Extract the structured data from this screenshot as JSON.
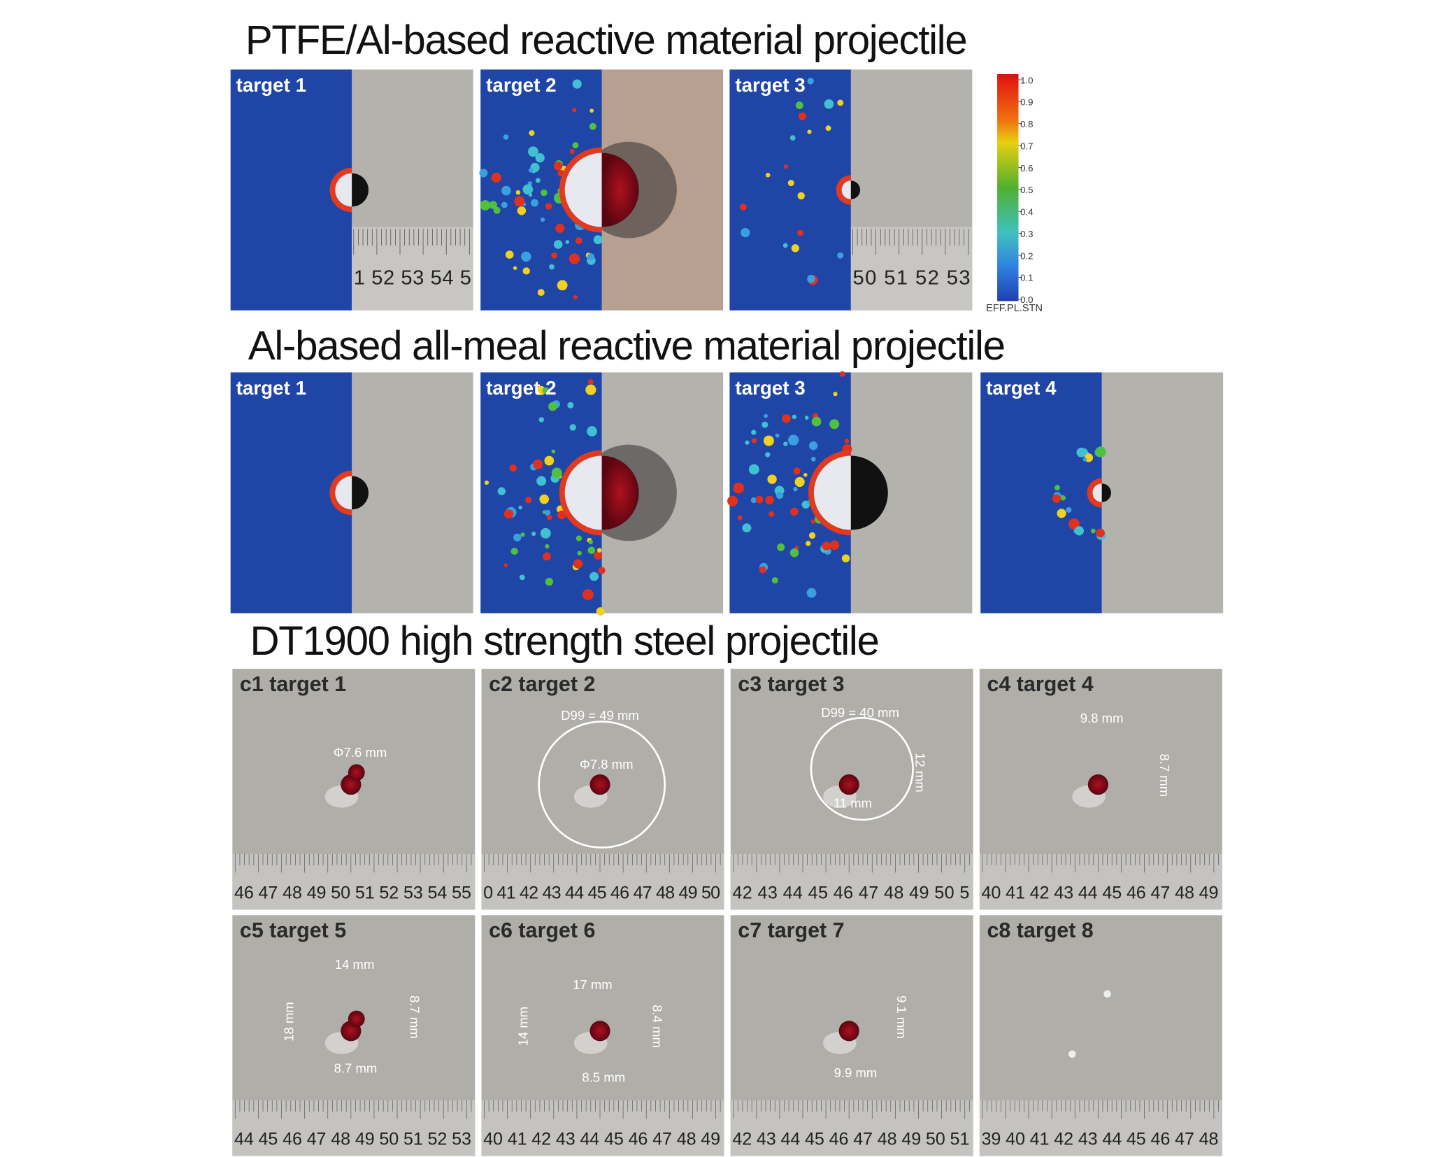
{
  "sections": [
    {
      "title": "PTFE/Al-based reactive material projectile",
      "panels": [
        {
          "label": "target 1",
          "ruler": "1 52 53 54 5"
        },
        {
          "label": "target 2"
        },
        {
          "label": "target 3",
          "ruler": "50 51 52 53"
        }
      ]
    },
    {
      "title": "Al-based all-meal reactive material projectile",
      "panels": [
        {
          "label": "target 1"
        },
        {
          "label": "target 2"
        },
        {
          "label": "target 3"
        },
        {
          "label": "target 4"
        }
      ]
    },
    {
      "title": "DT1900 high strength steel projectile",
      "panels": [
        {
          "label": "c1 target 1",
          "ruler": "46 47 48 49 50 51 52 53 54 55",
          "notes": [
            "Φ7.6 mm"
          ]
        },
        {
          "label": "c2 target 2",
          "ruler": "0 41 42 43 44 45 46 47 48 49 50",
          "notes": [
            "D99 = 49 mm",
            "Φ7.8 mm"
          ]
        },
        {
          "label": "c3 target 3",
          "ruler": "42 43 44 45 46 47 48 49 50 5",
          "notes": [
            "D99 = 40 mm",
            "12 mm",
            "11 mm"
          ]
        },
        {
          "label": "c4 target 4",
          "ruler": "40 41 42 43 44 45 46 47 48 49",
          "notes": [
            "9.8 mm",
            "8.7 mm"
          ]
        },
        {
          "label": "c5 target 5",
          "ruler": "44 45 46 47 48 49 50 51 52 53",
          "notes": [
            "14 mm",
            "18 mm",
            "8.7 mm",
            "8.7 mm"
          ]
        },
        {
          "label": "c6 target 6",
          "ruler": "40 41 42 43 44 45 46 47 48 49",
          "notes": [
            "17 mm",
            "14 mm",
            "8.4 mm",
            "8.5 mm"
          ]
        },
        {
          "label": "c7 target 7",
          "ruler": "42 43 44 45 46 47 48 49 50 51",
          "notes": [
            "9.1 mm",
            "9.9 mm"
          ]
        },
        {
          "label": "c8 target 8",
          "ruler": "39 40 41 42 43 44 45 46 47 48"
        }
      ]
    }
  ],
  "colorbar": {
    "ticks": [
      "1.0",
      "0.9",
      "0.8",
      "0.7",
      "0.6",
      "0.5",
      "0.4",
      "0.3",
      "0.2",
      "0.1",
      "0.0"
    ],
    "label": "EFF.PL.STN"
  }
}
